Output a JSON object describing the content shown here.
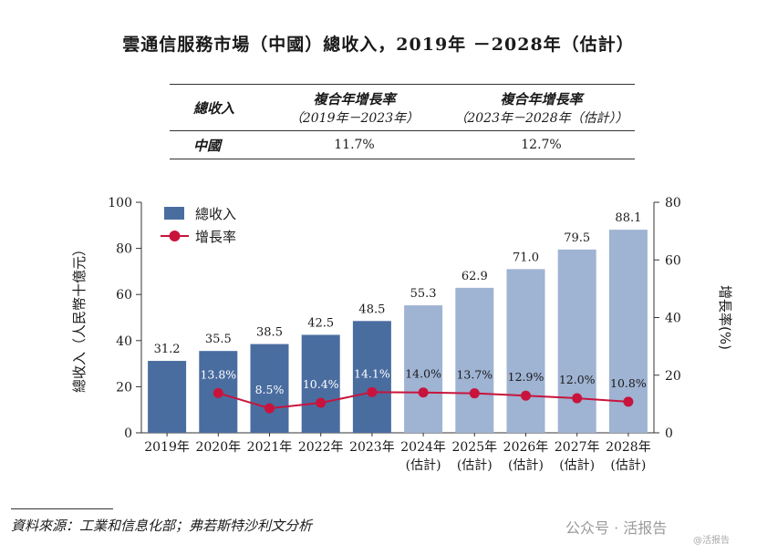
{
  "title": "雲通信服務市場（中國）總收入，2019年 －2028年（估計）",
  "cagr_table": {
    "header": {
      "col0": "總收入",
      "col1_line1": "複合年增長率",
      "col1_line2": "（2019年－2023年）",
      "col2_line1": "複合年增長率",
      "col2_line2": "（2023年－2028年（估計））"
    },
    "row": {
      "label": "中國",
      "val1": "11.7%",
      "val2": "12.7%"
    }
  },
  "chart_data": {
    "type": "bar+line",
    "categories": [
      "2019年",
      "2020年",
      "2021年",
      "2022年",
      "2023年",
      "2024年",
      "2025年",
      "2026年",
      "2027年",
      "2028年"
    ],
    "category_sublabels": [
      "",
      "",
      "",
      "",
      "",
      "(估計)",
      "(估計)",
      "(估計)",
      "(估計)",
      "(估計)"
    ],
    "series": [
      {
        "name": "總收入",
        "kind": "bar",
        "axis": "left",
        "values": [
          31.2,
          35.5,
          38.5,
          42.5,
          48.5,
          55.3,
          62.9,
          71.0,
          79.5,
          88.1
        ],
        "labels": [
          "31.2",
          "35.5",
          "38.5",
          "42.5",
          "48.5",
          "55.3",
          "62.9",
          "71.0",
          "79.5",
          "88.1"
        ],
        "estimated_from_index": 5
      },
      {
        "name": "增長率",
        "kind": "line",
        "axis": "right",
        "values": [
          null,
          13.8,
          8.5,
          10.4,
          14.1,
          14.0,
          13.7,
          12.9,
          12.0,
          10.8
        ],
        "labels": [
          "",
          "13.8%",
          "8.5%",
          "10.4%",
          "14.1%",
          "14.0%",
          "13.7%",
          "12.9%",
          "12.0%",
          "10.8%"
        ]
      }
    ],
    "ylabel_left": "總收入（人民幣十億元）",
    "ylabel_right": "增長率(%)",
    "ylim_left": [
      0,
      100
    ],
    "yticks_left": [
      0,
      20,
      40,
      60,
      80,
      100
    ],
    "ylim_right": [
      0,
      80
    ],
    "yticks_right": [
      0,
      20,
      40,
      60,
      80
    ],
    "legend_position": "top-left",
    "colors": {
      "bar_actual": "#4a6da0",
      "bar_estimate": "#9fb3d3",
      "line": "#c8143c",
      "rate_label_on_dark": "#ffffff",
      "rate_label_on_light": "#1a1a1a"
    }
  },
  "source": "資料來源：工業和信息化部；弗若斯特沙利文分析",
  "watermark": {
    "main": "公众号 · 活报告",
    "small": "@活报告"
  }
}
